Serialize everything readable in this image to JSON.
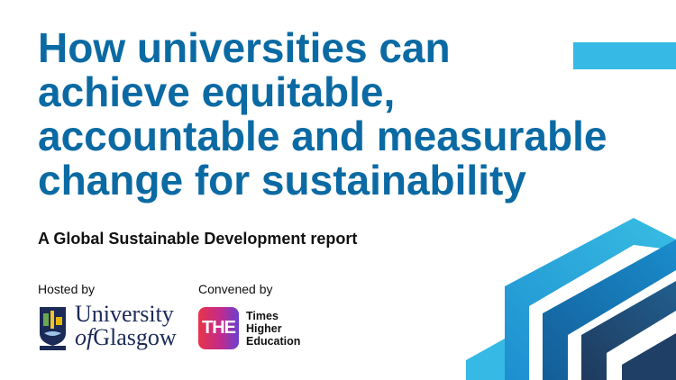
{
  "title_lines": [
    "How universities can",
    "achieve equitable,",
    "accountable and measurable",
    "change for sustainability"
  ],
  "subtitle": "A Global Sustainable Development report",
  "hosted": {
    "label": "Hosted by",
    "logo_line1": "University",
    "logo_line2_prefix": "of",
    "logo_line2": "Glasgow"
  },
  "convened": {
    "label": "Convened by",
    "logo_mark": "THE",
    "logo_lines": [
      "Times",
      "Higher",
      "Education"
    ]
  },
  "colors": {
    "title": "#0b6aa3",
    "accent_light": "#36b9e4",
    "accent_mid": "#1586c8",
    "accent_dark": "#1f3f66"
  }
}
